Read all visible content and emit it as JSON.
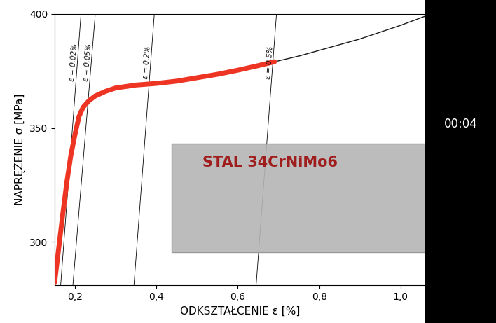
{
  "chart_data": {
    "type": "line",
    "title": "STAL 34CrNiMo6",
    "x_label": "ODKSZTAŁCENIE ε [%]",
    "y_label": "NAPRĘŻENIE σ [MPa]",
    "xlim": [
      0.15,
      1.06
    ],
    "ylim": [
      281,
      400
    ],
    "xticks": [
      {
        "value": 0.2,
        "label": "0,2"
      },
      {
        "value": 0.4,
        "label": "0,4"
      },
      {
        "value": 0.6,
        "label": "0,6"
      },
      {
        "value": 0.8,
        "label": "0,8"
      },
      {
        "value": 1.0,
        "label": "1,0"
      }
    ],
    "yticks": [
      300,
      350,
      400
    ],
    "grid": false,
    "series": [
      {
        "color": "#ee3524",
        "line_style": "solid",
        "x": [
          0.15,
          0.16,
          0.17,
          0.18,
          0.19,
          0.2,
          0.205,
          0.21,
          0.22,
          0.235,
          0.25,
          0.275,
          0.3,
          0.35,
          0.4,
          0.45,
          0.5,
          0.55,
          0.6,
          0.65,
          0.69
        ],
        "values": [
          282,
          297,
          312,
          326,
          338,
          347,
          351,
          355,
          359,
          362,
          364,
          366,
          367.5,
          368.8,
          369.5,
          370.5,
          372,
          373.5,
          375.3,
          377.3,
          379
        ]
      },
      {
        "color": "#1a1a1a",
        "line_style": "solid",
        "x": [
          0.69,
          0.75,
          0.8,
          0.85,
          0.9,
          0.95,
          1.0,
          1.06
        ],
        "values": [
          379,
          381.5,
          384,
          386.5,
          389,
          392,
          395,
          399
        ]
      }
    ],
    "reference_lines": [
      {
        "label": "ε = 0.02%",
        "x": [
          0.165,
          0.215
        ],
        "y": [
          281,
          400
        ]
      },
      {
        "label": "ε = 0.05%",
        "x": [
          0.195,
          0.25
        ],
        "y": [
          281,
          400
        ]
      },
      {
        "label": "ε = 0.2%",
        "x": [
          0.345,
          0.395
        ],
        "y": [
          281,
          400
        ]
      },
      {
        "label": "ε = 0.5%",
        "x": [
          0.645,
          0.695
        ],
        "y": [
          281,
          400
        ]
      }
    ],
    "annotations": [
      "00:04"
    ]
  }
}
